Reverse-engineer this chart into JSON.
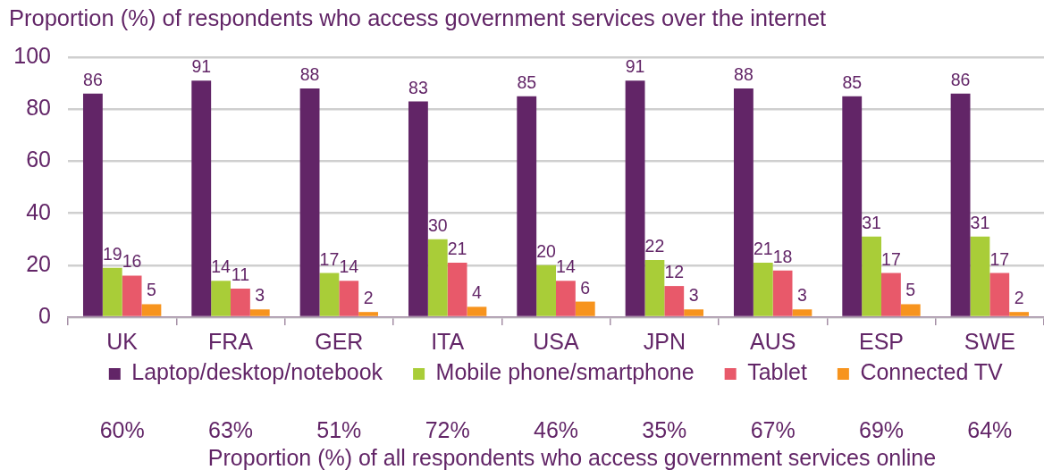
{
  "chart_data": [
    {
      "type": "bar",
      "title": "Proportion (%) of respondents who access government services over the internet",
      "categories": [
        "UK",
        "FRA",
        "GER",
        "ITA",
        "USA",
        "JPN",
        "AUS",
        "ESP",
        "SWE"
      ],
      "series": [
        {
          "name": "Laptop/desktop/notebook",
          "color": "#622567",
          "values": [
            86,
            91,
            88,
            83,
            85,
            91,
            88,
            85,
            86
          ]
        },
        {
          "name": "Mobile phone/smartphone",
          "color": "#a9cd38",
          "values": [
            19,
            14,
            17,
            30,
            20,
            22,
            21,
            31,
            31
          ]
        },
        {
          "name": "Tablet",
          "color": "#e8596a",
          "values": [
            16,
            11,
            14,
            21,
            14,
            12,
            18,
            17,
            17
          ]
        },
        {
          "name": "Connected TV",
          "color": "#f7941e",
          "values": [
            5,
            3,
            2,
            4,
            6,
            3,
            3,
            5,
            2
          ]
        }
      ],
      "ylim": [
        0,
        100
      ],
      "yticks": [
        0,
        20,
        40,
        60,
        80,
        100
      ],
      "grid": "y",
      "legend": "bottom",
      "data_labels": true
    },
    {
      "type": "other",
      "annotations": [
        "60%",
        "63%",
        "51%",
        "72%",
        "46%",
        "35%",
        "67%",
        "69%",
        "64%"
      ],
      "xlabel": "Proportion (%) of all respondents who access government services online"
    }
  ]
}
